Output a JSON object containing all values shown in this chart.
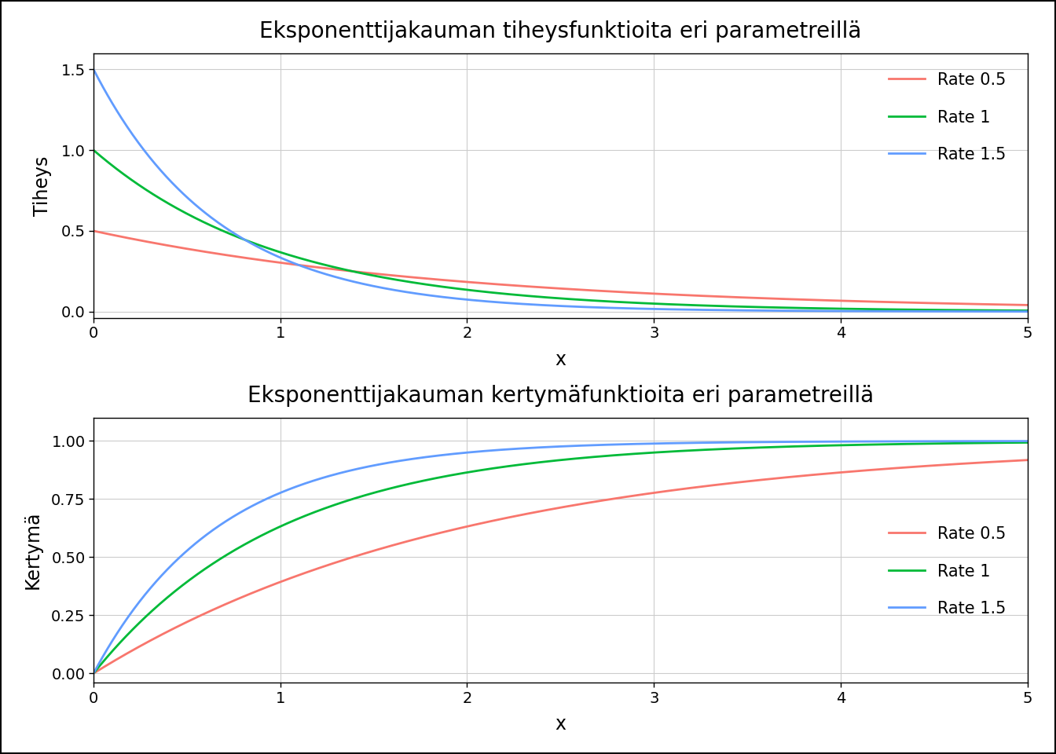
{
  "title_pdf": "Eksponenttijakauman tiheysfunktioita eri parametreillä",
  "title_cdf": "Eksponenttijakauman kertymäfunktioita eri parametreillä",
  "ylabel_pdf": "Tiheys",
  "ylabel_cdf": "Kertymä",
  "xlabel": "x",
  "rates": [
    0.5,
    1.0,
    1.5
  ],
  "rate_labels": [
    "Rate 0.5",
    "Rate 1",
    "Rate 1.5"
  ],
  "colors": [
    "#F8766D",
    "#00BA38",
    "#619CFF"
  ],
  "x_min": 0,
  "x_max": 5,
  "x_ticks": [
    0,
    1,
    2,
    3,
    4,
    5
  ],
  "pdf_ylim": [
    -0.04,
    1.6
  ],
  "pdf_yticks": [
    0.0,
    0.5,
    1.0,
    1.5
  ],
  "cdf_ylim": [
    -0.04,
    1.1
  ],
  "cdf_yticks": [
    0.0,
    0.25,
    0.5,
    0.75,
    1.0
  ],
  "background_color": "#FFFFFF",
  "panel_background": "#FFFFFF",
  "grid_color": "#CCCCCC",
  "spine_color": "#000000",
  "line_width": 2.0,
  "title_fontsize": 20,
  "axis_label_fontsize": 17,
  "tick_fontsize": 14,
  "legend_fontsize": 15,
  "outer_border_color": "#000000"
}
